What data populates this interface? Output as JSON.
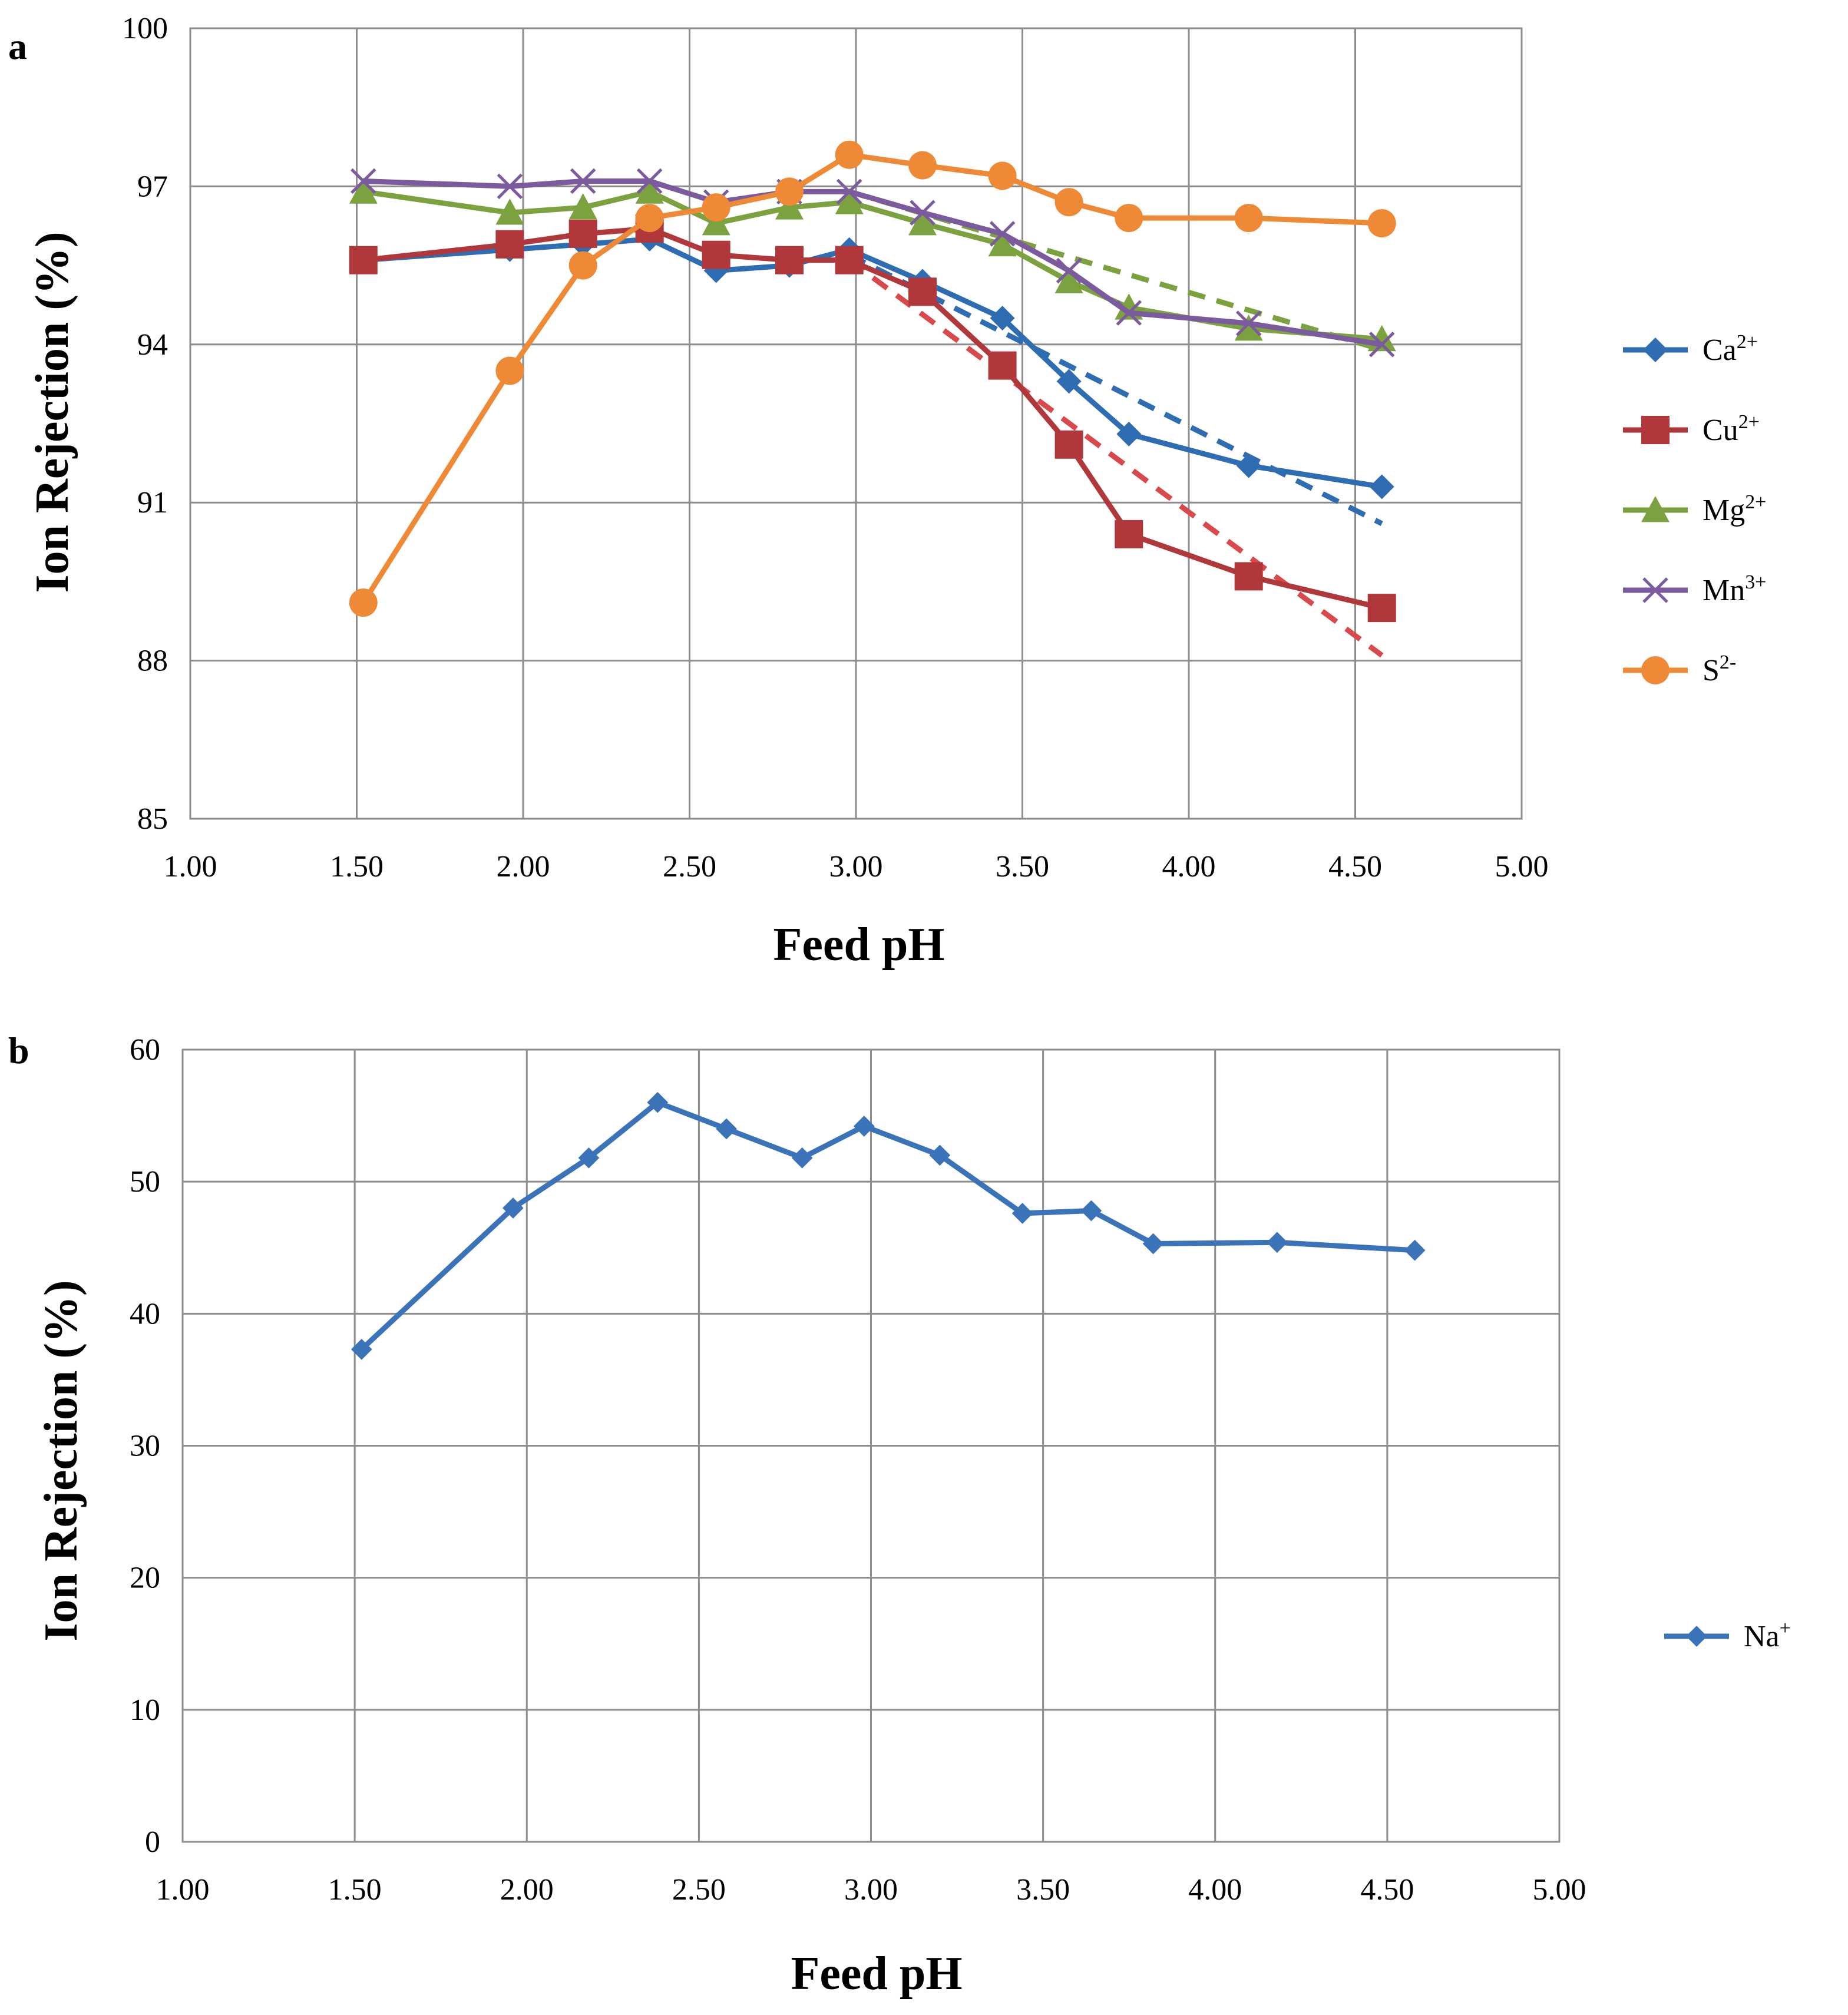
{
  "chart_data": [
    {
      "panel": "a",
      "type": "line",
      "xlabel": "Feed pH",
      "ylabel": "Ion Rejection (%)",
      "xlim": [
        1.0,
        5.0
      ],
      "ylim": [
        85,
        100
      ],
      "x_ticks": [
        "1.00",
        "1.50",
        "2.00",
        "2.50",
        "3.00",
        "3.50",
        "4.00",
        "4.50",
        "5.00"
      ],
      "y_ticks": [
        "85",
        "88",
        "91",
        "94",
        "97",
        "100"
      ],
      "grid": true,
      "legend_position": "right",
      "series": [
        {
          "name": "Ca",
          "sup": "2+",
          "color": "#2f6db3",
          "marker": "diamond",
          "x": [
            1.52,
            1.96,
            2.18,
            2.38,
            2.58,
            2.8,
            2.98,
            3.2,
            3.44,
            3.64,
            3.82,
            4.18,
            4.58
          ],
          "y": [
            95.6,
            95.8,
            95.9,
            96.0,
            95.4,
            95.5,
            95.8,
            95.2,
            94.5,
            93.3,
            92.3,
            91.7,
            91.3
          ],
          "trend": {
            "x": [
              2.98,
              4.58
            ],
            "y": [
              95.7,
              90.6
            ],
            "color": "#2f6db3"
          }
        },
        {
          "name": "Cu",
          "sup": "2+",
          "color": "#b0383a",
          "marker": "square",
          "x": [
            1.52,
            1.96,
            2.18,
            2.38,
            2.58,
            2.8,
            2.98,
            3.2,
            3.44,
            3.64,
            3.82,
            4.18,
            4.58
          ],
          "y": [
            95.6,
            95.9,
            96.1,
            96.2,
            95.7,
            95.6,
            95.6,
            95.0,
            93.6,
            92.1,
            90.4,
            89.6,
            89.0
          ],
          "trend": {
            "x": [
              2.98,
              4.58
            ],
            "y": [
              95.6,
              88.1
            ],
            "color": "#d9484b"
          }
        },
        {
          "name": "Mg",
          "sup": "2+",
          "color": "#7ba23f",
          "marker": "triangle",
          "x": [
            1.52,
            1.96,
            2.18,
            2.38,
            2.58,
            2.8,
            2.98,
            3.2,
            3.44,
            3.64,
            3.82,
            4.18,
            4.58
          ],
          "y": [
            96.9,
            96.5,
            96.6,
            96.9,
            96.3,
            96.6,
            96.7,
            96.3,
            95.9,
            95.2,
            94.7,
            94.3,
            94.1
          ],
          "trend": {
            "x": [
              2.98,
              4.58
            ],
            "y": [
              96.9,
              93.9
            ],
            "color": "#7ba23f"
          }
        },
        {
          "name": "Mn",
          "sup": "3+",
          "color": "#7b5a9e",
          "marker": "x",
          "x": [
            1.52,
            1.96,
            2.18,
            2.38,
            2.58,
            2.8,
            2.98,
            3.2,
            3.44,
            3.64,
            3.82,
            4.18,
            4.58
          ],
          "y": [
            97.1,
            97.0,
            97.1,
            97.1,
            96.7,
            96.9,
            96.9,
            96.5,
            96.1,
            95.4,
            94.6,
            94.4,
            94.0
          ],
          "trend": null
        },
        {
          "name": "S",
          "sup": "2-",
          "color": "#ee8a36",
          "marker": "circle",
          "x": [
            1.52,
            1.96,
            2.18,
            2.38,
            2.58,
            2.8,
            2.98,
            3.2,
            3.44,
            3.64,
            3.82,
            4.18,
            4.58
          ],
          "y": [
            89.1,
            93.5,
            95.5,
            96.4,
            96.6,
            96.9,
            97.6,
            97.4,
            97.2,
            96.7,
            96.4,
            96.4,
            96.3
          ],
          "trend": null
        }
      ]
    },
    {
      "panel": "b",
      "type": "line",
      "xlabel": "Feed pH",
      "ylabel": "Ion Rejection (%)",
      "xlim": [
        1.0,
        5.0
      ],
      "ylim": [
        0,
        60
      ],
      "x_ticks": [
        "1.00",
        "1.50",
        "2.00",
        "2.50",
        "3.00",
        "3.50",
        "4.00",
        "4.50",
        "5.00"
      ],
      "y_ticks": [
        "0",
        "10",
        "20",
        "30",
        "40",
        "50",
        "60"
      ],
      "grid": true,
      "legend_position": "right",
      "series": [
        {
          "name": "Na",
          "sup": "+",
          "color": "#3a73b8",
          "marker": "diamond",
          "x": [
            1.52,
            1.96,
            2.18,
            2.38,
            2.58,
            2.8,
            2.98,
            3.2,
            3.44,
            3.64,
            3.82,
            4.18,
            4.58
          ],
          "y": [
            37.3,
            48.0,
            51.8,
            56.0,
            54.0,
            51.8,
            54.2,
            52.0,
            47.6,
            47.8,
            45.3,
            45.4,
            44.8
          ],
          "trend": null
        }
      ]
    }
  ]
}
